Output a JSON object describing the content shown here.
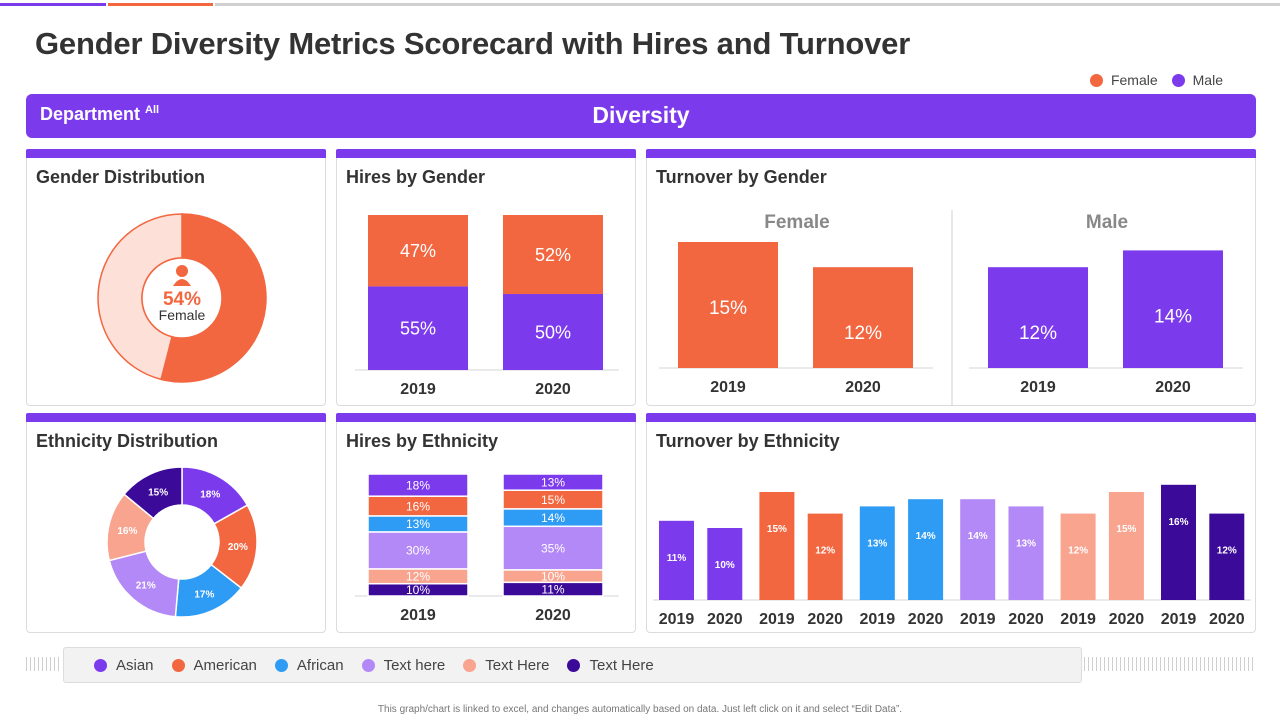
{
  "title": "Gender Diversity Metrics Scorecard with Hires and Turnover",
  "legend_top": [
    {
      "label": "Female",
      "color": "#f26640"
    },
    {
      "label": "Male",
      "color": "#7c3aed"
    }
  ],
  "banner": {
    "department": "Department",
    "department_sup": "All",
    "section": "Diversity"
  },
  "colors": {
    "female": "#f26640",
    "male": "#7c3aed",
    "female_light": "#fde0d8",
    "accent": "#7c3aed",
    "asian": "#7c3aed",
    "american": "#f26640",
    "african": "#2e9cf4",
    "text_here_1": "#b388f7",
    "text_here_2": "#f8a48f",
    "text_here_3": "#3b0a99"
  },
  "panels": {
    "gender_distribution": "Gender Distribution",
    "hires_by_gender": "Hires by Gender",
    "turnover_by_gender": "Turnover by Gender",
    "ethnicity_distribution": "Ethnicity Distribution",
    "hires_by_ethnicity": "Hires by Ethnicity",
    "turnover_by_ethnicity": "Turnover by Ethnicity"
  },
  "bottom_legend": [
    {
      "label": "Asian",
      "color": "#7c3aed"
    },
    {
      "label": "American",
      "color": "#f26640"
    },
    {
      "label": "African",
      "color": "#2e9cf4"
    },
    {
      "label": "Text here",
      "color": "#b388f7"
    },
    {
      "label": "Text Here",
      "color": "#f8a48f"
    },
    {
      "label": "Text Here",
      "color": "#3b0a99"
    }
  ],
  "footnote": "This graph/chart is linked to excel, and changes automatically based on data. Just left click on it and select “Edit Data”.",
  "chart_data": [
    {
      "id": "gender_distribution",
      "type": "pie",
      "title": "Gender Distribution",
      "center_value": "54%",
      "center_label": "Female",
      "slices": [
        {
          "name": "Female",
          "value": 54
        },
        {
          "name": "Male",
          "value": 46
        }
      ]
    },
    {
      "id": "hires_by_gender",
      "type": "bar",
      "stacked": true,
      "title": "Hires by Gender",
      "categories": [
        "2019",
        "2020"
      ],
      "series": [
        {
          "name": "Male",
          "values": [
            55,
            50
          ],
          "labels": [
            "55%",
            "50%"
          ]
        },
        {
          "name": "Female",
          "values": [
            47,
            52
          ],
          "labels": [
            "47%",
            "52%"
          ]
        }
      ]
    },
    {
      "id": "turnover_by_gender",
      "type": "bar",
      "title": "Turnover by Gender",
      "groups": [
        {
          "name": "Female",
          "categories": [
            "2019",
            "2020"
          ],
          "values": [
            15,
            12
          ],
          "labels": [
            "15%",
            "12%"
          ]
        },
        {
          "name": "Male",
          "categories": [
            "2019",
            "2020"
          ],
          "values": [
            12,
            14
          ],
          "labels": [
            "12%",
            "14%"
          ]
        }
      ]
    },
    {
      "id": "ethnicity_distribution",
      "type": "pie",
      "title": "Ethnicity Distribution",
      "slices": [
        {
          "name": "Asian",
          "value": 18,
          "label": "18%"
        },
        {
          "name": "American",
          "value": 20,
          "label": "20%"
        },
        {
          "name": "African",
          "value": 17,
          "label": "17%"
        },
        {
          "name": "Text here",
          "value": 21,
          "label": "21%"
        },
        {
          "name": "Text Here",
          "value": 16,
          "label": "16%"
        },
        {
          "name": "Text Here",
          "value": 15,
          "label": "15%"
        }
      ]
    },
    {
      "id": "hires_by_ethnicity",
      "type": "bar",
      "stacked": true,
      "title": "Hires by Ethnicity",
      "categories": [
        "2019",
        "2020"
      ],
      "series": [
        {
          "name": "Text Here",
          "values": [
            10,
            11
          ],
          "labels": [
            "10%",
            "11%"
          ]
        },
        {
          "name": "Text Here",
          "values": [
            12,
            10
          ],
          "labels": [
            "12%",
            "10%"
          ]
        },
        {
          "name": "Text here",
          "values": [
            30,
            35
          ],
          "labels": [
            "30%",
            "35%"
          ]
        },
        {
          "name": "African",
          "values": [
            13,
            14
          ],
          "labels": [
            "13%",
            "14%"
          ]
        },
        {
          "name": "American",
          "values": [
            16,
            15
          ],
          "labels": [
            "16%",
            "15%"
          ]
        },
        {
          "name": "Asian",
          "values": [
            18,
            13
          ],
          "labels": [
            "18%",
            "13%"
          ]
        }
      ]
    },
    {
      "id": "turnover_by_ethnicity",
      "type": "bar",
      "title": "Turnover by Ethnicity",
      "groups": [
        {
          "name": "Asian",
          "categories": [
            "2019",
            "2020"
          ],
          "values": [
            11,
            10
          ],
          "labels": [
            "11%",
            "10%"
          ]
        },
        {
          "name": "American",
          "categories": [
            "2019",
            "2020"
          ],
          "values": [
            15,
            12
          ],
          "labels": [
            "15%",
            "12%"
          ]
        },
        {
          "name": "African",
          "categories": [
            "2019",
            "2020"
          ],
          "values": [
            13,
            14
          ],
          "labels": [
            "13%",
            "14%"
          ]
        },
        {
          "name": "Text here",
          "categories": [
            "2019",
            "2020"
          ],
          "values": [
            14,
            13
          ],
          "labels": [
            "14%",
            "13%"
          ]
        },
        {
          "name": "Text Here",
          "categories": [
            "2019",
            "2020"
          ],
          "values": [
            12,
            15
          ],
          "labels": [
            "12%",
            "15%"
          ]
        },
        {
          "name": "Text Here",
          "categories": [
            "2019",
            "2020"
          ],
          "values": [
            16,
            12
          ],
          "labels": [
            "16%",
            "12%"
          ]
        }
      ]
    }
  ]
}
